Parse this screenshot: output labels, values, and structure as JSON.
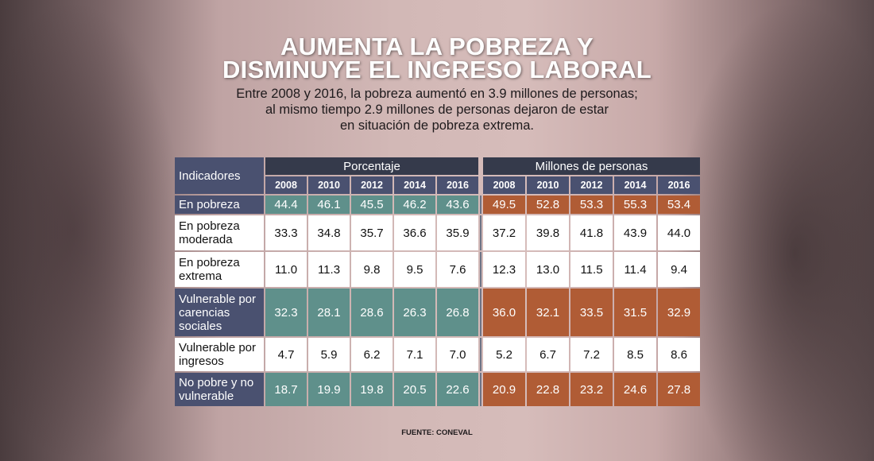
{
  "title_line1": "AUMENTA LA POBREZA Y",
  "title_line2": "DISMINUYE EL INGRESO LABORAL",
  "subtitle_line1": "Entre 2008 y 2016, la pobreza aumentó en 3.9 millones de personas;",
  "subtitle_line2": "al mismo tiempo 2.9 millones de personas dejaron de estar",
  "subtitle_line3": "en situación de pobreza extrema.",
  "source": "FUENTE: CONEVAL",
  "colors": {
    "navy": "#4a5170",
    "teal": "#5f908b",
    "orange": "#b05c35"
  },
  "chart_data": {
    "type": "table",
    "title": "AUMENTA LA POBREZA Y DISMINUYE EL INGRESO LABORAL",
    "indicator_header": "Indicadores",
    "groups": [
      "Porcentaje",
      "Millones de personas"
    ],
    "years": [
      "2008",
      "2010",
      "2012",
      "2014",
      "2016"
    ],
    "rows": [
      {
        "label": "En pobreza",
        "highlight": true,
        "pct": [
          "44.4",
          "46.1",
          "45.5",
          "46.2",
          "43.6"
        ],
        "mill": [
          "49.5",
          "52.8",
          "53.3",
          "55.3",
          "53.4"
        ]
      },
      {
        "label": "En pobreza moderada",
        "highlight": false,
        "pct": [
          "33.3",
          "34.8",
          "35.7",
          "36.6",
          "35.9"
        ],
        "mill": [
          "37.2",
          "39.8",
          "41.8",
          "43.9",
          "44.0"
        ]
      },
      {
        "label": "En pobreza extrema",
        "highlight": false,
        "pct": [
          "11.0",
          "11.3",
          "9.8",
          "9.5",
          "7.6"
        ],
        "mill": [
          "12.3",
          "13.0",
          "11.5",
          "11.4",
          "9.4"
        ]
      },
      {
        "label": "Vulnerable por carencias sociales",
        "highlight": true,
        "pct": [
          "32.3",
          "28.1",
          "28.6",
          "26.3",
          "26.8"
        ],
        "mill": [
          "36.0",
          "32.1",
          "33.5",
          "31.5",
          "32.9"
        ]
      },
      {
        "label": "Vulnerable por ingresos",
        "highlight": false,
        "pct": [
          "4.7",
          "5.9",
          "6.2",
          "7.1",
          "7.0"
        ],
        "mill": [
          "5.2",
          "6.7",
          "7.2",
          "8.5",
          "8.6"
        ]
      },
      {
        "label": "No pobre y no vulnerable",
        "highlight": true,
        "pct": [
          "18.7",
          "19.9",
          "19.8",
          "20.5",
          "22.6"
        ],
        "mill": [
          "20.9",
          "22.8",
          "23.2",
          "24.6",
          "27.8"
        ]
      }
    ]
  }
}
